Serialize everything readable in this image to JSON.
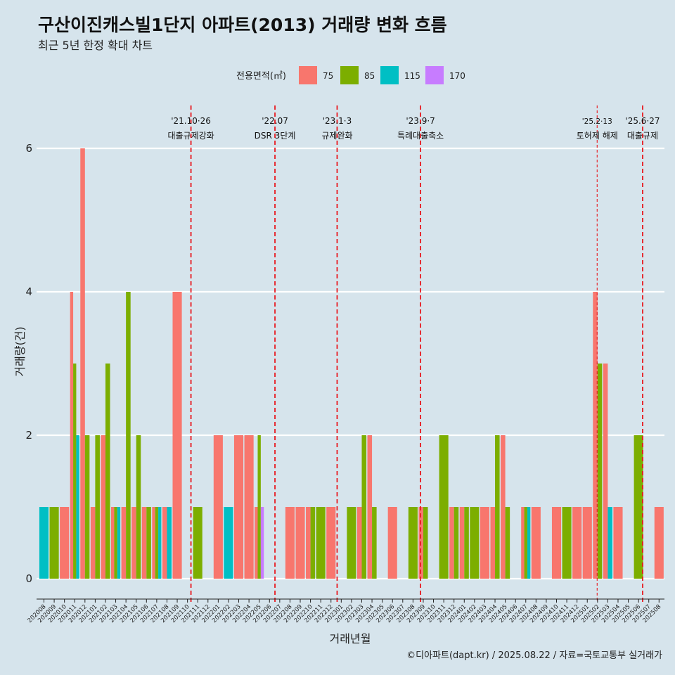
{
  "chart_data": {
    "type": "bar",
    "title": "구산이진캐스빌1단지 아파트(2013) 거래량 변화 흐름",
    "subtitle": "최근 5년 한정 확대 차트",
    "xlabel": "거래년월",
    "ylabel": "거래량(건)",
    "caption": "©디아파트(dapt.kr) / 2025.08.22 / 자료=국토교통부 실거래가",
    "ylim": [
      -0.3,
      6.7
    ],
    "yticks": [
      "0",
      "2",
      "4",
      "6"
    ],
    "legend": {
      "title": "전용면적(㎡)",
      "position": "top",
      "items": [
        {
          "label": "75",
          "color": "#F8766D"
        },
        {
          "label": "85",
          "color": "#7CAE00"
        },
        {
          "label": "115",
          "color": "#00BFC4"
        },
        {
          "label": "170",
          "color": "#C77CFF"
        }
      ]
    },
    "categories": [
      "202008",
      "202009",
      "202010",
      "202011",
      "202012",
      "202101",
      "202102",
      "202103",
      "202104",
      "202105",
      "202106",
      "202107",
      "202108",
      "202109",
      "202110",
      "202111",
      "202112",
      "202201",
      "202202",
      "202203",
      "202204",
      "202205",
      "202206",
      "202207",
      "202208",
      "202209",
      "202210",
      "202211",
      "202212",
      "202301",
      "202302",
      "202303",
      "202304",
      "202305",
      "202306",
      "202307",
      "202308",
      "202309",
      "202310",
      "202311",
      "202312",
      "202401",
      "202402",
      "202403",
      "202404",
      "202405",
      "202406",
      "202407",
      "202408",
      "202409",
      "202410",
      "202411",
      "202412",
      "202501",
      "202502",
      "202503",
      "202504",
      "202505",
      "202506",
      "202507",
      "202508"
    ],
    "bars": [
      {
        "month": "202008",
        "groups": [
          {
            "area": "115",
            "value": 1
          }
        ]
      },
      {
        "month": "202009",
        "groups": [
          {
            "area": "85",
            "value": 1
          }
        ]
      },
      {
        "month": "202010",
        "groups": [
          {
            "area": "75",
            "value": 1
          }
        ]
      },
      {
        "month": "202011",
        "groups": [
          {
            "area": "75",
            "value": 4
          },
          {
            "area": "85",
            "value": 3
          },
          {
            "area": "115",
            "value": 2
          }
        ]
      },
      {
        "month": "202012",
        "groups": [
          {
            "area": "75",
            "value": 6
          },
          {
            "area": "85",
            "value": 2
          }
        ]
      },
      {
        "month": "202101",
        "groups": [
          {
            "area": "75",
            "value": 1
          },
          {
            "area": "85",
            "value": 2
          }
        ]
      },
      {
        "month": "202102",
        "groups": [
          {
            "area": "75",
            "value": 2
          },
          {
            "area": "85",
            "value": 3
          }
        ]
      },
      {
        "month": "202103",
        "groups": [
          {
            "area": "75",
            "value": 1
          },
          {
            "area": "85",
            "value": 1
          },
          {
            "area": "115",
            "value": 1
          }
        ]
      },
      {
        "month": "202104",
        "groups": [
          {
            "area": "75",
            "value": 1
          },
          {
            "area": "85",
            "value": 4
          }
        ]
      },
      {
        "month": "202105",
        "groups": [
          {
            "area": "75",
            "value": 1
          },
          {
            "area": "85",
            "value": 2
          }
        ]
      },
      {
        "month": "202106",
        "groups": [
          {
            "area": "75",
            "value": 1
          },
          {
            "area": "85",
            "value": 1
          }
        ]
      },
      {
        "month": "202107",
        "groups": [
          {
            "area": "75",
            "value": 1
          },
          {
            "area": "85",
            "value": 1
          },
          {
            "area": "115",
            "value": 1
          }
        ]
      },
      {
        "month": "202108",
        "groups": [
          {
            "area": "75",
            "value": 1
          },
          {
            "area": "115",
            "value": 1
          }
        ]
      },
      {
        "month": "202109",
        "groups": [
          {
            "area": "75",
            "value": 4
          }
        ]
      },
      {
        "month": "202110",
        "groups": []
      },
      {
        "month": "202111",
        "groups": [
          {
            "area": "85",
            "value": 1
          }
        ]
      },
      {
        "month": "202112",
        "groups": []
      },
      {
        "month": "202201",
        "groups": [
          {
            "area": "75",
            "value": 2
          }
        ]
      },
      {
        "month": "202202",
        "groups": [
          {
            "area": "115",
            "value": 1
          }
        ]
      },
      {
        "month": "202203",
        "groups": [
          {
            "area": "75",
            "value": 2
          }
        ]
      },
      {
        "month": "202204",
        "groups": [
          {
            "area": "75",
            "value": 2
          }
        ]
      },
      {
        "month": "202205",
        "groups": [
          {
            "area": "75",
            "value": 1
          },
          {
            "area": "85",
            "value": 2
          },
          {
            "area": "170",
            "value": 1
          }
        ]
      },
      {
        "month": "202206",
        "groups": []
      },
      {
        "month": "202207",
        "groups": []
      },
      {
        "month": "202208",
        "groups": [
          {
            "area": "75",
            "value": 1
          }
        ]
      },
      {
        "month": "202209",
        "groups": [
          {
            "area": "75",
            "value": 1
          }
        ]
      },
      {
        "month": "202210",
        "groups": [
          {
            "area": "75",
            "value": 1
          },
          {
            "area": "85",
            "value": 1
          }
        ]
      },
      {
        "month": "202211",
        "groups": [
          {
            "area": "85",
            "value": 1
          }
        ]
      },
      {
        "month": "202212",
        "groups": [
          {
            "area": "75",
            "value": 1
          }
        ]
      },
      {
        "month": "202301",
        "groups": []
      },
      {
        "month": "202302",
        "groups": [
          {
            "area": "85",
            "value": 1
          }
        ]
      },
      {
        "month": "202303",
        "groups": [
          {
            "area": "75",
            "value": 1
          },
          {
            "area": "85",
            "value": 2
          }
        ]
      },
      {
        "month": "202304",
        "groups": [
          {
            "area": "75",
            "value": 2
          },
          {
            "area": "85",
            "value": 1
          }
        ]
      },
      {
        "month": "202305",
        "groups": []
      },
      {
        "month": "202306",
        "groups": [
          {
            "area": "75",
            "value": 1
          }
        ]
      },
      {
        "month": "202307",
        "groups": []
      },
      {
        "month": "202308",
        "groups": [
          {
            "area": "85",
            "value": 1
          }
        ]
      },
      {
        "month": "202309",
        "groups": [
          {
            "area": "75",
            "value": 1
          },
          {
            "area": "85",
            "value": 1
          }
        ]
      },
      {
        "month": "202310",
        "groups": []
      },
      {
        "month": "202311",
        "groups": [
          {
            "area": "85",
            "value": 2
          }
        ]
      },
      {
        "month": "202312",
        "groups": [
          {
            "area": "75",
            "value": 1
          },
          {
            "area": "85",
            "value": 1
          }
        ]
      },
      {
        "month": "202401",
        "groups": [
          {
            "area": "75",
            "value": 1
          },
          {
            "area": "85",
            "value": 1
          }
        ]
      },
      {
        "month": "202402",
        "groups": [
          {
            "area": "85",
            "value": 1
          }
        ]
      },
      {
        "month": "202403",
        "groups": [
          {
            "area": "75",
            "value": 1
          }
        ]
      },
      {
        "month": "202404",
        "groups": [
          {
            "area": "75",
            "value": 1
          },
          {
            "area": "85",
            "value": 2
          }
        ]
      },
      {
        "month": "202405",
        "groups": [
          {
            "area": "75",
            "value": 2
          },
          {
            "area": "85",
            "value": 1
          }
        ]
      },
      {
        "month": "202406",
        "groups": []
      },
      {
        "month": "202407",
        "groups": [
          {
            "area": "75",
            "value": 1
          },
          {
            "area": "85",
            "value": 1
          },
          {
            "area": "115",
            "value": 1
          }
        ]
      },
      {
        "month": "202408",
        "groups": [
          {
            "area": "75",
            "value": 1
          }
        ]
      },
      {
        "month": "202409",
        "groups": []
      },
      {
        "month": "202410",
        "groups": [
          {
            "area": "75",
            "value": 1
          }
        ]
      },
      {
        "month": "202411",
        "groups": [
          {
            "area": "85",
            "value": 1
          }
        ]
      },
      {
        "month": "202412",
        "groups": [
          {
            "area": "75",
            "value": 1
          }
        ]
      },
      {
        "month": "202501",
        "groups": [
          {
            "area": "75",
            "value": 1
          }
        ]
      },
      {
        "month": "202502",
        "groups": [
          {
            "area": "75",
            "value": 4
          },
          {
            "area": "85",
            "value": 3
          }
        ]
      },
      {
        "month": "202503",
        "groups": [
          {
            "area": "75",
            "value": 3
          },
          {
            "area": "115",
            "value": 1
          }
        ]
      },
      {
        "month": "202504",
        "groups": [
          {
            "area": "75",
            "value": 1
          }
        ]
      },
      {
        "month": "202505",
        "groups": []
      },
      {
        "month": "202506",
        "groups": [
          {
            "area": "85",
            "value": 2
          }
        ]
      },
      {
        "month": "202507",
        "groups": []
      },
      {
        "month": "202508",
        "groups": [
          {
            "area": "75",
            "value": 1
          }
        ]
      }
    ],
    "events": [
      {
        "date": "2021-10-26",
        "line1": "'21.10·26",
        "line2": "대출규제강화",
        "style": "thick"
      },
      {
        "date": "2022-07-01",
        "line1": "'22.07",
        "line2": "DSR 3단계",
        "style": "thick"
      },
      {
        "date": "2023-01-03",
        "line1": "'23.1·3",
        "line2": "규제완화",
        "style": "thick"
      },
      {
        "date": "2023-09-07",
        "line1": "'23.9·7",
        "line2": "특례대출축소",
        "style": "thick"
      },
      {
        "date": "2025-02-13",
        "line1": "'25.2·13",
        "line2": "토허제 해제",
        "style": "thin"
      },
      {
        "date": "2025-06-27",
        "line1": "'25.6·27",
        "line2": "대출규제",
        "style": "thick"
      }
    ]
  }
}
